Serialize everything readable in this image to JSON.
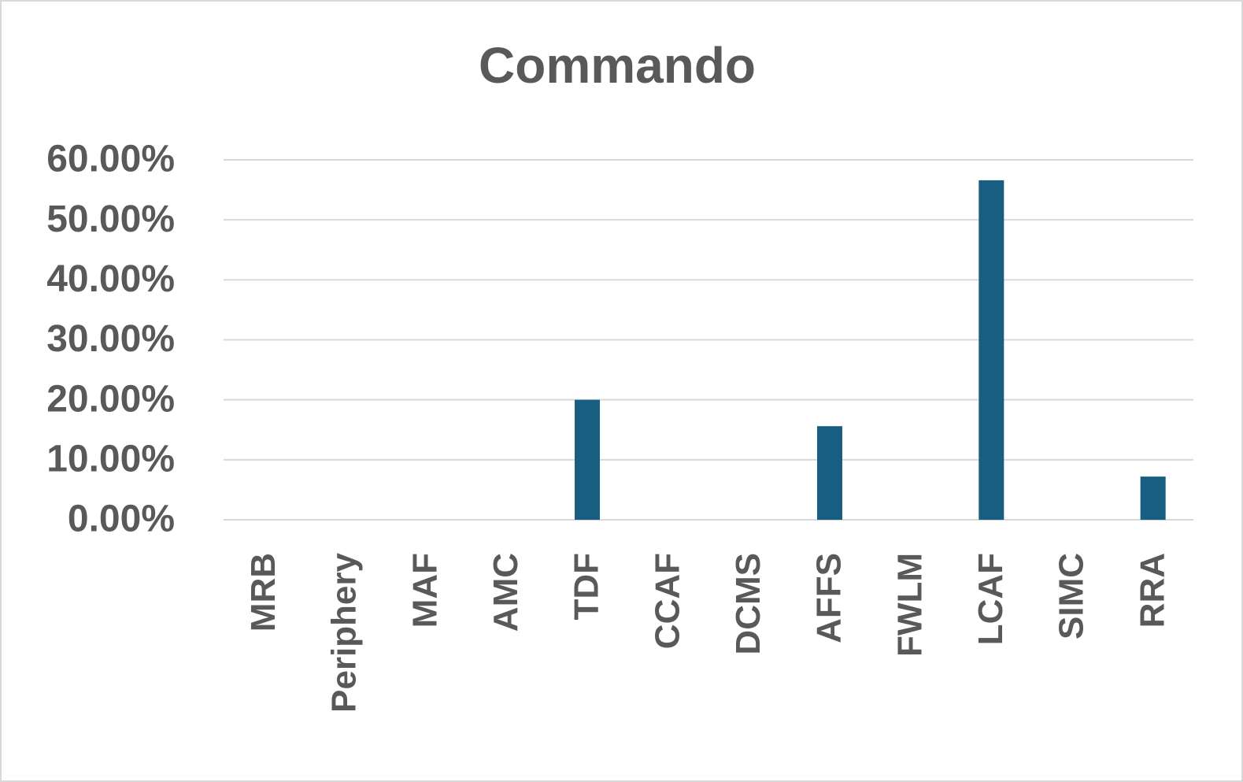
{
  "chart_data": {
    "type": "bar",
    "title": "Commando",
    "categories": [
      "MRB",
      "Periphery",
      "MAF",
      "AMC",
      "TDF",
      "CCAF",
      "DCMS",
      "AFFS",
      "FWLM",
      "LCAF",
      "SIMC",
      "RRA"
    ],
    "values": [
      0,
      0,
      0,
      0,
      20,
      0,
      0,
      15.6,
      0,
      56.6,
      0,
      7.2
    ],
    "color": "#175e80",
    "ylim": [
      0,
      60
    ],
    "yticks": [
      {
        "value": 0,
        "label": "0.00%"
      },
      {
        "value": 10,
        "label": "10.00%"
      },
      {
        "value": 20,
        "label": "20.00%"
      },
      {
        "value": 30,
        "label": "30.00%"
      },
      {
        "value": 40,
        "label": "40.00%"
      },
      {
        "value": 50,
        "label": "50.00%"
      },
      {
        "value": 60,
        "label": "60.00%"
      }
    ],
    "grid": true
  }
}
